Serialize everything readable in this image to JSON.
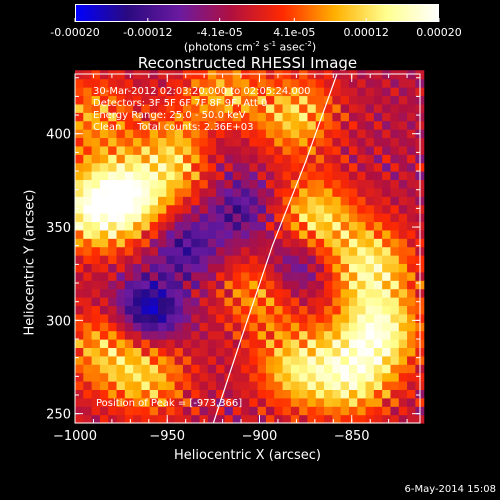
{
  "colorbar": {
    "ticks": [
      "-0.00020",
      "-0.00012",
      "-4.1e-05",
      "4.1e-05",
      "0.00012",
      "0.00020"
    ],
    "tick_values": [
      -0.0002,
      -0.00012,
      -4.1e-05,
      4.1e-05,
      0.00012,
      0.0002
    ],
    "range": [
      -0.0002,
      0.0002
    ],
    "unit_label": "(photons cm",
    "unit_sup1": "-2",
    "unit_mid": " s",
    "unit_sup2": "-1",
    "unit_mid2": " asec",
    "unit_sup3": "-2",
    "unit_end": ")",
    "colors": [
      "#0000ff",
      "#2a0a80",
      "#6a1aa0",
      "#b01040",
      "#ff2a00",
      "#ffb000",
      "#ffff90",
      "#ffffff"
    ]
  },
  "chart_data": {
    "type": "heatmap",
    "title": "Reconstructed RHESSI Image",
    "xlabel": "Heliocentric X (arcsec)",
    "ylabel": "Heliocentric Y (arcsec)",
    "xlim": [
      -1000,
      -813
    ],
    "ylim": [
      245,
      432
    ],
    "x_ticks": [
      -1000,
      -950,
      -900,
      -850
    ],
    "x_tick_labels": [
      "−1000",
      "−950",
      "−900",
      "−850"
    ],
    "y_ticks": [
      250,
      300,
      350,
      400
    ],
    "y_tick_labels": [
      "250",
      "300",
      "350",
      "400"
    ],
    "annotations": [
      "30-Mar-2012 02:03:20.000 to 02:05:24.000",
      "Detectors: 3F 5F 6F 7F 8F 9F, Att 0",
      "Energy Range: 25.0 - 50.0 keV",
      "Clean     Total counts: 2.36E+03"
    ],
    "peak_label": "Position of Peak = [-973,366]",
    "peak": [
      -973,
      366
    ],
    "limb_curve": [
      [
        -925,
        245
      ],
      [
        -910,
        290
      ],
      [
        -893,
        340
      ],
      [
        -875,
        385
      ],
      [
        -858,
        432
      ]
    ],
    "bright_regions": [
      {
        "x": -990,
        "y": 360,
        "level": 1.0
      },
      {
        "x": -968,
        "y": 368,
        "level": 0.95
      },
      {
        "x": -940,
        "y": 390,
        "level": 0.75
      },
      {
        "x": -870,
        "y": 355,
        "level": 0.8
      },
      {
        "x": -840,
        "y": 330,
        "level": 0.85
      },
      {
        "x": -835,
        "y": 295,
        "level": 0.95
      },
      {
        "x": -850,
        "y": 270,
        "level": 0.85
      },
      {
        "x": -880,
        "y": 275,
        "level": 0.75
      },
      {
        "x": -960,
        "y": 270,
        "level": 0.65
      },
      {
        "x": -985,
        "y": 285,
        "level": 0.6
      },
      {
        "x": -880,
        "y": 410,
        "level": 0.7
      },
      {
        "x": -920,
        "y": 420,
        "level": 0.6
      },
      {
        "x": -990,
        "y": 410,
        "level": 0.55
      },
      {
        "x": -900,
        "y": 315,
        "level": 0.55
      }
    ],
    "dark_regions": [
      {
        "x": -960,
        "y": 305,
        "level": -0.9
      },
      {
        "x": -910,
        "y": 360,
        "level": -0.5
      },
      {
        "x": -880,
        "y": 330,
        "level": -0.6
      },
      {
        "x": -940,
        "y": 340,
        "level": -0.55
      },
      {
        "x": -925,
        "y": 395,
        "level": -0.45
      }
    ]
  },
  "footer": {
    "date": "6-May-2014 15:08"
  }
}
